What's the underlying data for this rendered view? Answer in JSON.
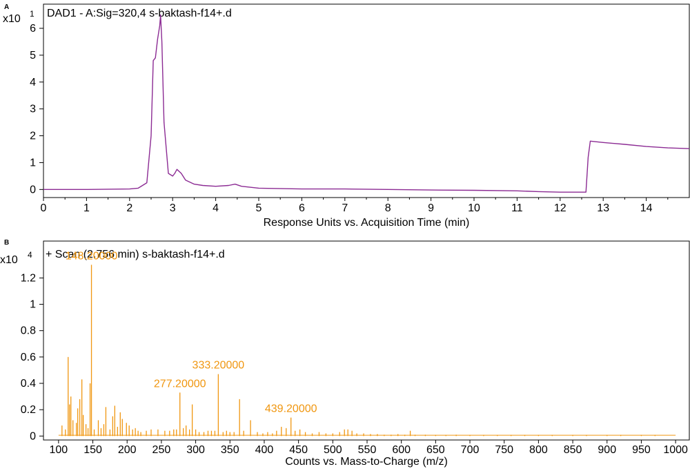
{
  "panels": [
    {
      "letter": "A",
      "exponent_label": "x10",
      "exponent_value": "1",
      "title": "DAD1 - A:Sig=320,4 s-baktash-f14+.d",
      "xlabel": "Response Units vs. Acquisition Time (min)",
      "color": "#8b2a93"
    },
    {
      "letter": "B",
      "exponent_label": "x10",
      "exponent_value": "4",
      "title": "+ Scan (2.756 min) s-baktash-f14+.d",
      "xlabel": "Counts vs. Mass-to-Charge (m/z)",
      "color": "#f0960f"
    }
  ],
  "chart_data": [
    {
      "type": "line",
      "title": "DAD1 - A:Sig=320,4 s-baktash-f14+.d",
      "xlabel": "Response Units vs. Acquisition Time (min)",
      "ylabel": "",
      "y_multiplier": "x10 1",
      "xlim": [
        0,
        15
      ],
      "ylim": [
        -0.3,
        6.9
      ],
      "x_ticks": [
        "0",
        "1",
        "2",
        "3",
        "4",
        "5",
        "6",
        "7",
        "8",
        "9",
        "10",
        "11",
        "12",
        "13",
        "14"
      ],
      "y_ticks": [
        "0",
        "1",
        "2",
        "3",
        "4",
        "5",
        "6"
      ],
      "grid": false,
      "series": [
        {
          "x": [
            0,
            1,
            2,
            2.2,
            2.4,
            2.5,
            2.55,
            2.6,
            2.65,
            2.7,
            2.72,
            2.75,
            2.8,
            2.9,
            3.0,
            3.05,
            3.1,
            3.2,
            3.3,
            3.5,
            3.7,
            4.0,
            4.3,
            4.45,
            4.6,
            5.0,
            6.0,
            7.0,
            8.0,
            9.0,
            10.0,
            11.0,
            11.5,
            12.0,
            12.3,
            12.6,
            12.65,
            12.7,
            13.0,
            13.5,
            14.0,
            14.5,
            15.0
          ],
          "y": [
            0,
            0,
            0.02,
            0.05,
            0.25,
            2.0,
            4.8,
            4.9,
            5.6,
            6.1,
            6.5,
            5.5,
            2.5,
            0.6,
            0.5,
            0.6,
            0.75,
            0.6,
            0.35,
            0.2,
            0.15,
            0.12,
            0.15,
            0.2,
            0.12,
            0.05,
            0.02,
            0.02,
            0.0,
            -0.02,
            -0.03,
            -0.05,
            -0.08,
            -0.1,
            -0.1,
            -0.1,
            1.2,
            1.8,
            1.75,
            1.68,
            1.6,
            1.55,
            1.52
          ]
        }
      ]
    },
    {
      "type": "bar",
      "title": "+ Scan (2.756 min) s-baktash-f14+.d",
      "xlabel": "Counts vs. Mass-to-Charge (m/z)",
      "ylabel": "",
      "y_multiplier": "x10 4",
      "xlim": [
        78,
        1020
      ],
      "ylim": [
        -0.03,
        1.48
      ],
      "x_ticks": [
        "100",
        "150",
        "200",
        "250",
        "300",
        "350",
        "400",
        "450",
        "500",
        "550",
        "600",
        "650",
        "700",
        "750",
        "800",
        "850",
        "900",
        "950",
        "1000"
      ],
      "y_ticks": [
        "0",
        "0.2",
        "0.4",
        "0.6",
        "0.8",
        "1",
        "1.2"
      ],
      "grid": false,
      "x": [
        105,
        110,
        114,
        116,
        118,
        121,
        126,
        128,
        131,
        134,
        136,
        140,
        143,
        146,
        148,
        152,
        158,
        162,
        166,
        169,
        175,
        179,
        182,
        186,
        190,
        193,
        199,
        203,
        208,
        212,
        216,
        220,
        228,
        235,
        245,
        255,
        262,
        268,
        272,
        277,
        282,
        286,
        291,
        295,
        300,
        305,
        312,
        318,
        323,
        328,
        333,
        340,
        345,
        350,
        356,
        364,
        370,
        380,
        390,
        398,
        405,
        412,
        418,
        425,
        432,
        439,
        445,
        452,
        460,
        470,
        480,
        490,
        500,
        510,
        517,
        522,
        528,
        535,
        545,
        555,
        565,
        575,
        585,
        595,
        605,
        613,
        620,
        635,
        650,
        665,
        680,
        700,
        720,
        740,
        760,
        780,
        800,
        820,
        850,
        870,
        900,
        920,
        950,
        970
      ],
      "values": [
        0.08,
        0.05,
        0.6,
        0.24,
        0.3,
        0.12,
        0.1,
        0.21,
        0.28,
        0.43,
        0.16,
        0.09,
        0.06,
        0.4,
        1.3,
        0.05,
        0.12,
        0.06,
        0.09,
        0.22,
        0.05,
        0.15,
        0.23,
        0.07,
        0.18,
        0.13,
        0.1,
        0.08,
        0.05,
        0.06,
        0.04,
        0.03,
        0.04,
        0.05,
        0.05,
        0.04,
        0.04,
        0.05,
        0.05,
        0.33,
        0.06,
        0.08,
        0.05,
        0.24,
        0.05,
        0.03,
        0.03,
        0.04,
        0.04,
        0.04,
        0.47,
        0.03,
        0.04,
        0.03,
        0.03,
        0.28,
        0.04,
        0.12,
        0.03,
        0.02,
        0.03,
        0.02,
        0.04,
        0.07,
        0.06,
        0.14,
        0.04,
        0.05,
        0.03,
        0.02,
        0.03,
        0.02,
        0.02,
        0.03,
        0.05,
        0.05,
        0.04,
        0.02,
        0.02,
        0.015,
        0.015,
        0.01,
        0.01,
        0.015,
        0.01,
        0.04,
        0.01,
        0.01,
        0.008,
        0.008,
        0.01,
        0.008,
        0.008,
        0.008,
        0.008,
        0.008,
        0.008,
        0.008,
        0.008,
        0.008,
        0.008,
        0.008,
        0.008,
        0.008
      ],
      "annotations": [
        {
          "label": "148.20000",
          "x": 148,
          "y": 1.3
        },
        {
          "label": "333.20000",
          "x": 333,
          "y": 0.47
        },
        {
          "label": "277.20000",
          "x": 277,
          "y": 0.33
        },
        {
          "label": "439.20000",
          "x": 439,
          "y": 0.14
        }
      ]
    }
  ]
}
